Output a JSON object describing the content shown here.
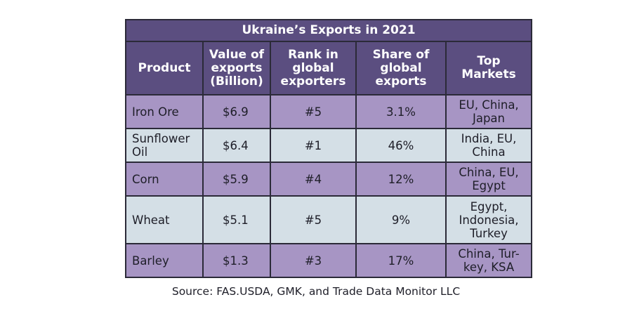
{
  "title": "Ukraine’s Exports in 2021",
  "headers": [
    "Product",
    "Value of exports (Billion)",
    "Rank in global exporters",
    "Share of global exports",
    "Top Markets"
  ],
  "rows": [
    {
      "product": "Iron Ore",
      "value": "$6.9",
      "rank": "#5",
      "share": "3.1%",
      "markets": "EU, China, Japan"
    },
    {
      "product": "Sunflower Oil",
      "value": "$6.4",
      "rank": "#1",
      "share": "46%",
      "markets": "India, EU, China"
    },
    {
      "product": "Corn",
      "value": "$5.9",
      "rank": "#4",
      "share": "12%",
      "markets": "China, EU, Egypt"
    },
    {
      "product": "Wheat",
      "value": "$5.1",
      "rank": "#5",
      "share": "9%",
      "markets": "Egypt, Indonesia, Turkey"
    },
    {
      "product": "Barley",
      "value": "$1.3",
      "rank": "#3",
      "share": "17%",
      "markets": "China, Tur-key, KSA"
    }
  ],
  "source": "Source: FAS.USDA, GMK, and Trade Data Monitor LLC",
  "colors": {
    "header_bg": "#5b4e80",
    "row_purple": "#a795c4",
    "row_light": "#d4dfe6",
    "border": "#2b2a38"
  }
}
